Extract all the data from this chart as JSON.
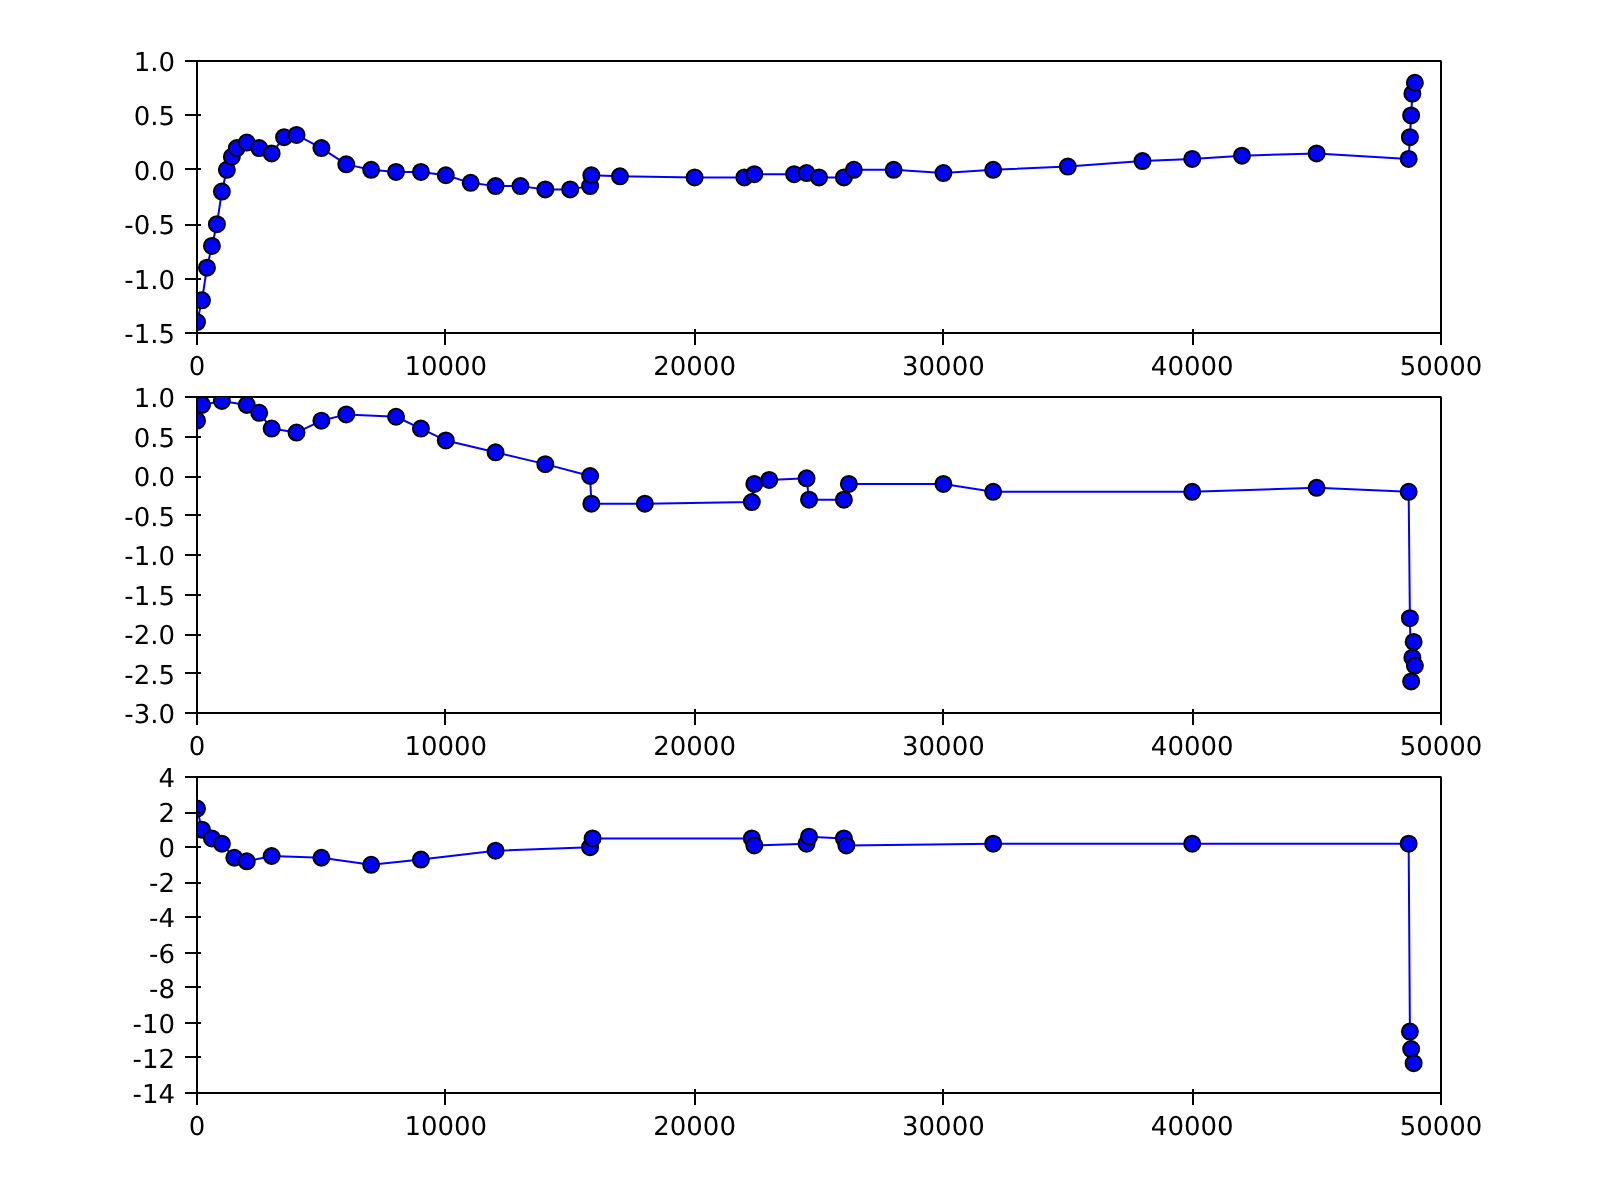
{
  "chart_data": [
    {
      "type": "line",
      "marker": "circle",
      "grid": false,
      "xlim": [
        0,
        50000
      ],
      "xticks": [
        0,
        10000,
        20000,
        30000,
        40000,
        50000
      ],
      "ylim": [
        -1.5,
        1.0
      ],
      "yticks": [
        -1.5,
        {
          "value": -1,
          "label": "-1.0"
        },
        -0.5,
        {
          "value": 0,
          "label": "0.0"
        },
        0.5,
        {
          "value": 1,
          "label": "1.0"
        }
      ],
      "x": [
        0,
        200,
        400,
        600,
        800,
        1000,
        1200,
        1400,
        1600,
        2000,
        2500,
        3000,
        3500,
        4000,
        5000,
        6000,
        7000,
        8000,
        9000,
        10000,
        11000,
        12000,
        13000,
        14000,
        15000,
        15800,
        15850,
        17000,
        20000,
        22000,
        22400,
        24000,
        24500,
        25000,
        26000,
        26400,
        28000,
        30000,
        32000,
        35000,
        38000,
        40000,
        42000,
        45000,
        48700,
        48750,
        48800,
        48850,
        48950
      ],
      "series": [
        {
          "color": "#0000ff",
          "values": [
            -1.4,
            -1.2,
            -0.9,
            -0.7,
            -0.5,
            -0.2,
            0.0,
            0.12,
            0.2,
            0.25,
            0.2,
            0.15,
            0.3,
            0.32,
            0.2,
            0.05,
            0.0,
            -0.02,
            -0.02,
            -0.05,
            -0.12,
            -0.15,
            -0.15,
            -0.18,
            -0.18,
            -0.15,
            -0.05,
            -0.06,
            -0.07,
            -0.07,
            -0.04,
            -0.04,
            -0.03,
            -0.07,
            -0.07,
            0.0,
            0.0,
            -0.03,
            0.0,
            0.03,
            0.08,
            0.1,
            0.13,
            0.15,
            0.1,
            0.3,
            0.5,
            0.7,
            0.8
          ]
        }
      ]
    },
    {
      "type": "line",
      "marker": "circle",
      "grid": false,
      "xlim": [
        0,
        50000
      ],
      "xticks": [
        0,
        10000,
        20000,
        30000,
        40000,
        50000
      ],
      "ylim": [
        -3.0,
        1.0
      ],
      "yticks": [
        {
          "value": -3,
          "label": "-3.0"
        },
        -2.5,
        {
          "value": -2,
          "label": "-2.0"
        },
        -1.5,
        {
          "value": -1,
          "label": "-1.0"
        },
        -0.5,
        {
          "value": 0,
          "label": "0.0"
        },
        0.5,
        {
          "value": 1,
          "label": "1.0"
        }
      ],
      "x": [
        0,
        200,
        1000,
        2000,
        2500,
        3000,
        4000,
        5000,
        6000,
        8000,
        9000,
        10000,
        12000,
        14000,
        15800,
        15850,
        18000,
        22300,
        22400,
        23000,
        24500,
        24600,
        26000,
        26200,
        30000,
        32000,
        40000,
        45000,
        48700,
        48750,
        48800,
        48850,
        48900,
        48950
      ],
      "series": [
        {
          "color": "#0000ff",
          "values": [
            0.7,
            0.9,
            0.95,
            0.9,
            0.8,
            0.6,
            0.55,
            0.7,
            0.78,
            0.75,
            0.6,
            0.45,
            0.3,
            0.15,
            0.0,
            -0.35,
            -0.35,
            -0.33,
            -0.1,
            -0.05,
            -0.03,
            -0.3,
            -0.3,
            -0.1,
            -0.1,
            -0.2,
            -0.2,
            -0.15,
            -0.2,
            -1.8,
            -2.6,
            -2.3,
            -2.1,
            -2.4
          ]
        }
      ]
    },
    {
      "type": "line",
      "marker": "circle",
      "grid": false,
      "xlim": [
        0,
        50000
      ],
      "xticks": [
        0,
        10000,
        20000,
        30000,
        40000,
        50000
      ],
      "ylim": [
        -14,
        4
      ],
      "yticks": [
        -14,
        -12,
        -10,
        -8,
        -6,
        -4,
        -2,
        0,
        2,
        4
      ],
      "x": [
        0,
        200,
        600,
        1000,
        1500,
        2000,
        3000,
        5000,
        7000,
        9000,
        12000,
        15800,
        15900,
        22300,
        22400,
        24500,
        24600,
        26000,
        26100,
        32000,
        40000,
        48700,
        48750,
        48800,
        48900
      ],
      "series": [
        {
          "color": "#0000ff",
          "values": [
            2.2,
            1.0,
            0.5,
            0.2,
            -0.6,
            -0.8,
            -0.5,
            -0.6,
            -1.0,
            -0.7,
            -0.2,
            0.0,
            0.5,
            0.5,
            0.1,
            0.2,
            0.6,
            0.5,
            0.1,
            0.2,
            0.2,
            0.2,
            -10.5,
            -11.5,
            -12.3
          ]
        }
      ]
    }
  ]
}
